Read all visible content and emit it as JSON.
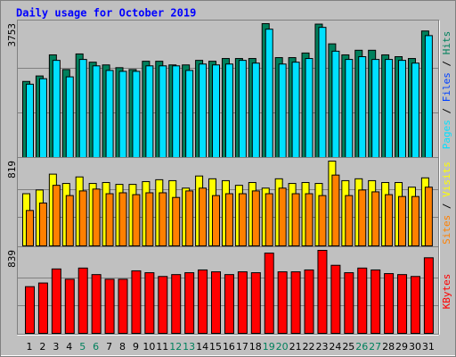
{
  "title": "Daily usage for October 2019",
  "legend_separator": " / ",
  "chart_data": [
    {
      "type": "bar",
      "ylim": [
        0,
        3753
      ],
      "yticks": [
        3753
      ],
      "grid_lines": [
        1251,
        2502
      ],
      "series": [
        {
          "name": "Hits",
          "color": "#00805c",
          "values": [
            2133,
            2287,
            2878,
            2467,
            2904,
            2673,
            2596,
            2519,
            2467,
            2699,
            2699,
            2596,
            2596,
            2724,
            2699,
            2776,
            2776,
            2776,
            3753,
            2801,
            2801,
            2930,
            3740,
            3187,
            2878,
            3007,
            3007,
            2878,
            2827,
            2776,
            3547
          ]
        },
        {
          "name": "Pages",
          "color": "#00e0ff",
          "values": [
            2056,
            2210,
            2724,
            2262,
            2750,
            2570,
            2442,
            2416,
            2416,
            2570,
            2570,
            2570,
            2442,
            2621,
            2596,
            2621,
            2724,
            2647,
            3598,
            2621,
            2673,
            2776,
            3649,
            2981,
            2750,
            2827,
            2750,
            2750,
            2724,
            2647,
            3418
          ]
        }
      ],
      "other_legend_entries": [
        {
          "name": "Files",
          "color": "#0040ff"
        }
      ],
      "legend_order": [
        "Pages",
        "Files",
        "Hits"
      ]
    },
    {
      "type": "bar",
      "ylim": [
        0,
        819
      ],
      "yticks": [
        819
      ],
      "grid_lines": [
        273,
        546
      ],
      "series": [
        {
          "name": "Visits",
          "color": "#ffff00",
          "values": [
            504,
            540,
            693,
            603,
            666,
            603,
            612,
            594,
            594,
            621,
            639,
            630,
            558,
            675,
            648,
            630,
            585,
            612,
            558,
            648,
            603,
            612,
            603,
            819,
            630,
            648,
            630,
            612,
            612,
            567,
            657
          ]
        },
        {
          "name": "Sites",
          "color": "#ff8000",
          "values": [
            342,
            414,
            585,
            486,
            531,
            549,
            504,
            513,
            495,
            513,
            513,
            468,
            531,
            558,
            486,
            504,
            504,
            531,
            504,
            558,
            504,
            504,
            486,
            684,
            486,
            540,
            522,
            495,
            477,
            477,
            567
          ]
        }
      ],
      "legend_order": [
        "Sites",
        "Visits"
      ]
    },
    {
      "type": "bar",
      "ylim": [
        0,
        839
      ],
      "yticks": [
        839
      ],
      "grid_lines": [
        280,
        559
      ],
      "series": [
        {
          "name": "KBytes",
          "color": "#ff0000",
          "values": [
            472,
            509,
            651,
            547,
            660,
            594,
            547,
            547,
            632,
            613,
            575,
            594,
            613,
            641,
            622,
            594,
            622,
            613,
            811,
            622,
            622,
            641,
            839,
            688,
            613,
            660,
            641,
            604,
            594,
            575,
            764
          ]
        }
      ],
      "legend_order": [
        "KBytes"
      ],
      "categories": [
        1,
        2,
        3,
        4,
        5,
        6,
        7,
        8,
        9,
        10,
        11,
        12,
        13,
        14,
        15,
        16,
        17,
        18,
        19,
        20,
        21,
        22,
        23,
        24,
        25,
        26,
        27,
        28,
        29,
        30,
        31
      ],
      "category_colors": [
        "#000000",
        "#000000",
        "#000000",
        "#000000",
        "#00805c",
        "#00805c",
        "#000000",
        "#000000",
        "#000000",
        "#000000",
        "#000000",
        "#00805c",
        "#00805c",
        "#000000",
        "#000000",
        "#000000",
        "#000000",
        "#000000",
        "#00805c",
        "#00805c",
        "#000000",
        "#000000",
        "#000000",
        "#000000",
        "#000000",
        "#00805c",
        "#00805c",
        "#000000",
        "#000000",
        "#000000",
        "#000000"
      ]
    }
  ]
}
